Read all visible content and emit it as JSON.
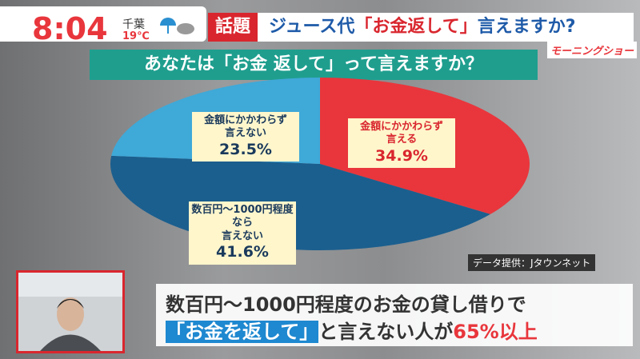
{
  "header": {
    "time": "8:04",
    "location": "千葉",
    "temperature": "19℃",
    "tag": "話題",
    "headline": [
      "ジュース代",
      "「お金返して」",
      "言えますか?"
    ],
    "logo": "モーニングショー"
  },
  "chart_data": {
    "type": "pie",
    "title": "あなたは「お金 返して」って言えますか？",
    "categories": [
      "金額にかかわらず\n言える",
      "数百円〜1000円程度なら\n言えない",
      "金額にかかわらず\n言えない"
    ],
    "values": [
      34.9,
      41.6,
      23.5
    ],
    "value_labels": [
      "34.9%",
      "41.6%",
      "23.5%"
    ],
    "colors": [
      "#e8363c",
      "#1b5f8e",
      "#3fa9d8"
    ],
    "source": "データ提供：Jタウンネット"
  },
  "caption": {
    "line1": "数百円〜1000円程度のお金の貸し借りで",
    "line2": [
      "「お金を返して」",
      "と言えない人が",
      "65%以上"
    ]
  }
}
